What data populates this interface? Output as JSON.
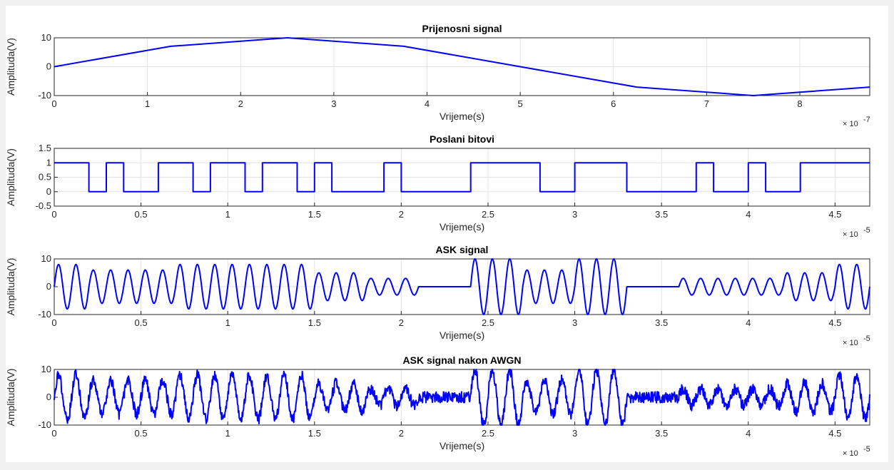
{
  "chart_data": [
    {
      "type": "line",
      "title": "Prijenosni signal",
      "xlabel": "Vrijeme(s)",
      "ylabel": "Amplituda(V)",
      "x_exponent_label": "× 10",
      "x_exponent": "-7",
      "x_tick_labels": [
        "0",
        "1",
        "2",
        "3",
        "4",
        "5",
        "6",
        "7",
        "8"
      ],
      "y_tick_labels": [
        "-10",
        "0",
        "10"
      ],
      "xlim": [
        0,
        8.75
      ],
      "ylim": [
        -10,
        10
      ],
      "grid": true,
      "color": "#0000ff",
      "x": [
        0,
        1.25,
        2.5,
        3.75,
        5,
        6.25,
        7.5,
        8.75
      ],
      "y": [
        0,
        7.07,
        10,
        7.07,
        0,
        -7.07,
        -10,
        -7.07
      ]
    },
    {
      "type": "line",
      "title": "Poslani bitovi",
      "xlabel": "Vrijeme(s)",
      "ylabel": "Amplituda(V)",
      "x_exponent_label": "× 10",
      "x_exponent": "-5",
      "x_tick_labels": [
        "0",
        "0.5",
        "1",
        "1.5",
        "2",
        "2.5",
        "3",
        "3.5",
        "4",
        "4.5"
      ],
      "y_tick_labels": [
        "-0.5",
        "0",
        "0.5",
        "1",
        "1.5"
      ],
      "xlim": [
        0,
        4.7
      ],
      "ylim": [
        -0.5,
        1.5
      ],
      "grid": true,
      "color": "#0000ff",
      "bit_duration": 0.1,
      "bits": [
        1,
        1,
        0,
        1,
        0,
        0,
        1,
        1,
        0,
        1,
        1,
        0,
        1,
        1,
        0,
        1,
        0,
        0,
        0,
        1,
        0,
        0,
        0,
        0,
        1,
        1,
        1,
        1,
        0,
        0,
        1,
        1,
        1,
        0,
        0,
        0,
        0,
        1,
        0,
        0,
        1,
        0,
        0,
        1,
        1,
        1,
        1
      ]
    },
    {
      "type": "line",
      "title": "ASK signal",
      "xlabel": "Vrijeme(s)",
      "ylabel": "Amplituda(V)",
      "x_exponent_label": "× 10",
      "x_exponent": "-5",
      "x_tick_labels": [
        "0",
        "0.5",
        "1",
        "1.5",
        "2",
        "2.5",
        "3",
        "3.5",
        "4",
        "4.5"
      ],
      "y_tick_labels": [
        "-10",
        "0",
        "10"
      ],
      "xlim": [
        0,
        4.7
      ],
      "ylim": [
        -10,
        10
      ],
      "grid": true,
      "color": "#0000ff",
      "carrier_period": 0.1,
      "envelope": [
        {
          "t0": 0,
          "t1": 0.2,
          "a": 8
        },
        {
          "t0": 0.2,
          "t1": 0.7,
          "a": 6
        },
        {
          "t0": 0.7,
          "t1": 1.5,
          "a": 8
        },
        {
          "t0": 1.5,
          "t1": 1.8,
          "a": 5
        },
        {
          "t0": 1.8,
          "t1": 2.1,
          "a": 3
        },
        {
          "t0": 2.1,
          "t1": 2.4,
          "a": 0
        },
        {
          "t0": 2.4,
          "t1": 2.7,
          "a": 10
        },
        {
          "t0": 2.7,
          "t1": 3.0,
          "a": 6
        },
        {
          "t0": 3.0,
          "t1": 3.3,
          "a": 10
        },
        {
          "t0": 3.3,
          "t1": 3.6,
          "a": 0
        },
        {
          "t0": 3.6,
          "t1": 4.2,
          "a": 3
        },
        {
          "t0": 4.2,
          "t1": 4.5,
          "a": 5
        },
        {
          "t0": 4.5,
          "t1": 4.7,
          "a": 8
        }
      ]
    },
    {
      "type": "line",
      "title": "ASK signal nakon AWGN",
      "xlabel": "Vrijeme(s)",
      "ylabel": "Amplituda(V)",
      "x_exponent_label": "× 10",
      "x_exponent": "-5",
      "x_tick_labels": [
        "0",
        "0.5",
        "1",
        "1.5",
        "2",
        "2.5",
        "3",
        "3.5",
        "4",
        "4.5"
      ],
      "y_tick_labels": [
        "-10",
        "0",
        "10"
      ],
      "xlim": [
        0,
        4.7
      ],
      "ylim": [
        -10,
        10
      ],
      "grid": true,
      "color": "#0000ff",
      "carrier_period": 0.1,
      "noise_amplitude": 2,
      "envelope": [
        {
          "t0": 0,
          "t1": 0.2,
          "a": 8
        },
        {
          "t0": 0.2,
          "t1": 0.7,
          "a": 6
        },
        {
          "t0": 0.7,
          "t1": 1.5,
          "a": 8
        },
        {
          "t0": 1.5,
          "t1": 1.8,
          "a": 5
        },
        {
          "t0": 1.8,
          "t1": 2.1,
          "a": 3
        },
        {
          "t0": 2.1,
          "t1": 2.4,
          "a": 0
        },
        {
          "t0": 2.4,
          "t1": 2.7,
          "a": 10
        },
        {
          "t0": 2.7,
          "t1": 3.0,
          "a": 6
        },
        {
          "t0": 3.0,
          "t1": 3.3,
          "a": 10
        },
        {
          "t0": 3.3,
          "t1": 3.6,
          "a": 0
        },
        {
          "t0": 3.6,
          "t1": 4.2,
          "a": 3
        },
        {
          "t0": 4.2,
          "t1": 4.5,
          "a": 5
        },
        {
          "t0": 4.5,
          "t1": 4.7,
          "a": 8
        }
      ]
    }
  ]
}
